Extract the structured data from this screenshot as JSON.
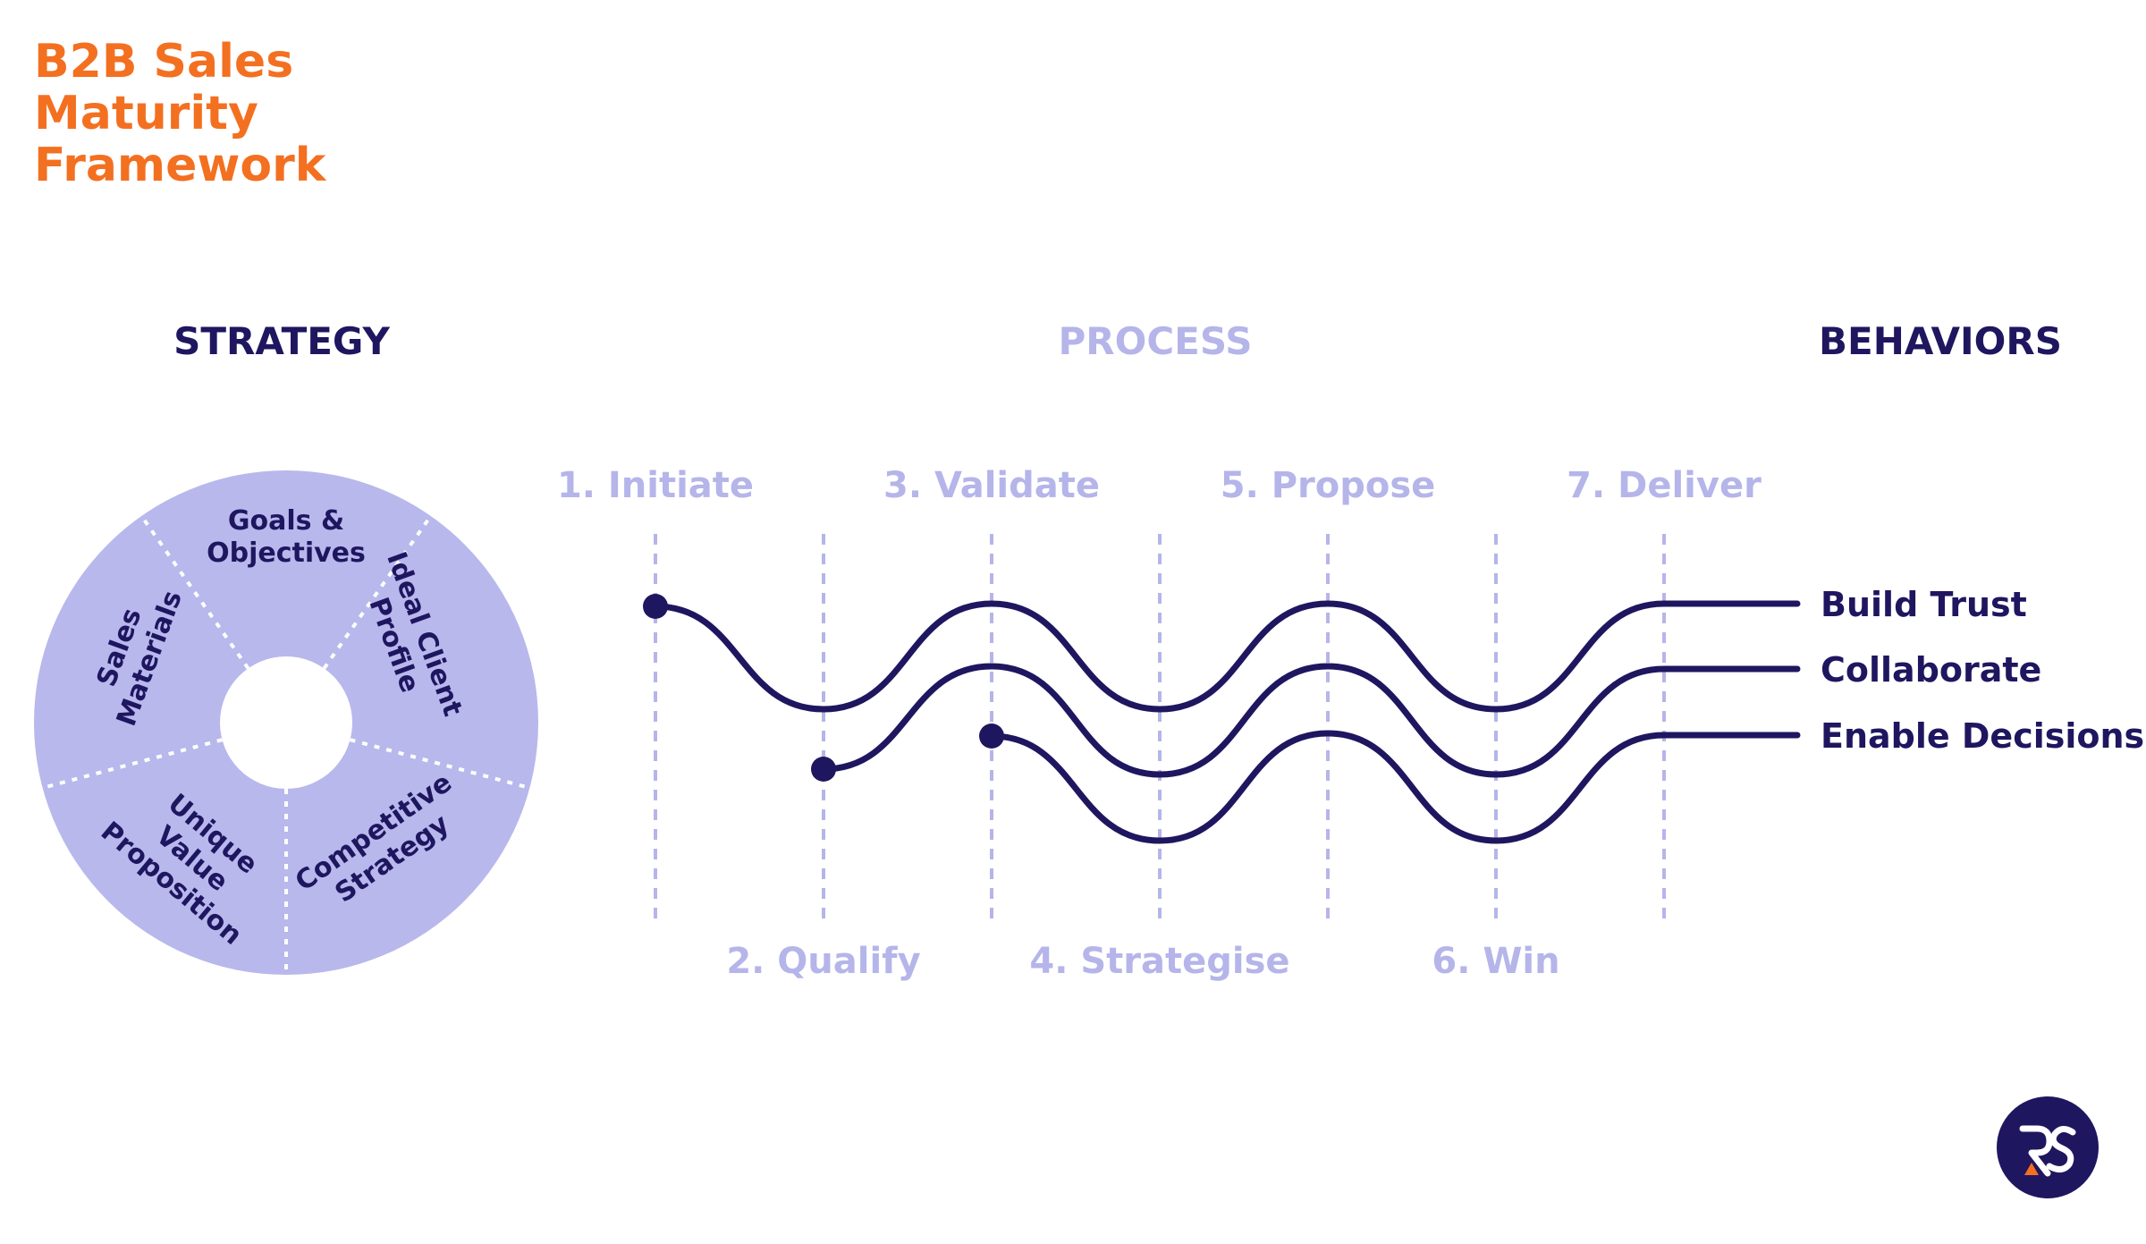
{
  "title": [
    "B2B Sales",
    "Maturity",
    "Framework"
  ],
  "colors": {
    "title": "#F37021",
    "dark": "#1F1660",
    "light": "#B5B5EA",
    "wheel": "#B8B8EC",
    "logo_bg": "#1F1660",
    "logo_accent": "#F37021"
  },
  "sections": {
    "strategy": "STRATEGY",
    "process": "PROCESS",
    "behaviors": "BEHAVIORS"
  },
  "strategy_wheel": {
    "segments": [
      {
        "lines": [
          "Goals &",
          "Objectives"
        ]
      },
      {
        "lines": [
          "Ideal Client",
          "Profile"
        ]
      },
      {
        "lines": [
          "Competitive",
          "Strategy"
        ]
      },
      {
        "lines": [
          "Unique",
          "Value",
          "Proposition"
        ]
      },
      {
        "lines": [
          "Sales",
          "Materials"
        ]
      }
    ]
  },
  "process_steps": [
    {
      "label": "1. Initiate"
    },
    {
      "label": "2. Qualify"
    },
    {
      "label": "3. Validate"
    },
    {
      "label": "4. Strategise"
    },
    {
      "label": "5. Propose"
    },
    {
      "label": "6. Win"
    },
    {
      "label": "7. Deliver"
    }
  ],
  "behaviors": [
    "Build Trust",
    "Collaborate",
    "Enable Decisions"
  ],
  "logo": {
    "text": "RS",
    "icon": "rs-monogram-logo"
  }
}
